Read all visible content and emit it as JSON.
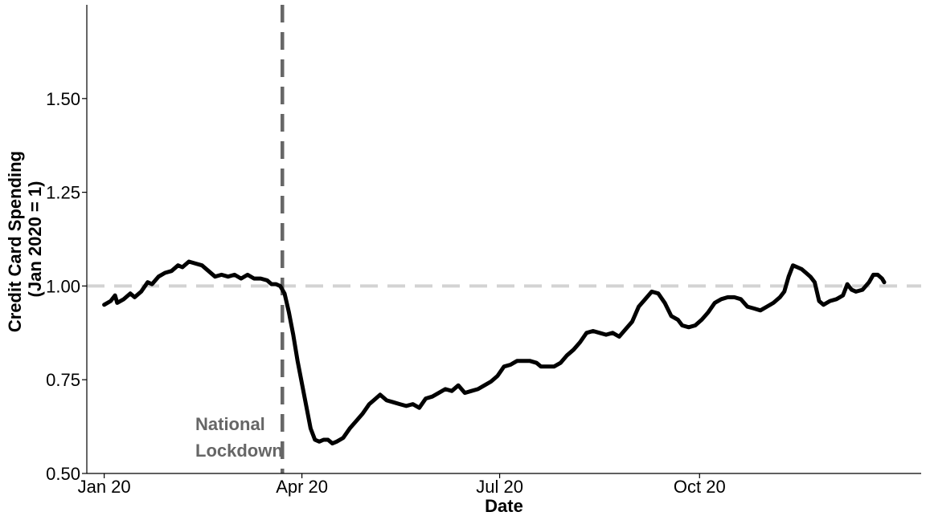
{
  "chart_data": {
    "type": "line",
    "title": "",
    "xlabel": "Date",
    "ylabel_lines": [
      "Credit Card Spending",
      "(Jan 2020 = 1)"
    ],
    "x_tick_labels": [
      {
        "date": "2020-01-01",
        "label": "Jan 20"
      },
      {
        "date": "2020-04-01",
        "label": "Apr 20"
      },
      {
        "date": "2020-07-01",
        "label": "Jul 20"
      },
      {
        "date": "2020-10-01",
        "label": "Oct 20"
      }
    ],
    "y_ticks": [
      {
        "value": 0.5,
        "label": "0.50"
      },
      {
        "value": 0.75,
        "label": "0.75"
      },
      {
        "value": 1.0,
        "label": "1.00"
      },
      {
        "value": 1.25,
        "label": "1.25"
      },
      {
        "value": 1.5,
        "label": "1.50"
      }
    ],
    "xlim": [
      "2019-12-24",
      "2021-01-11"
    ],
    "ylim": [
      0.5,
      1.75
    ],
    "grid": false,
    "reference_lines": [
      {
        "axis": "y",
        "value": 1.0,
        "style": "dashed",
        "color": "#d3d3d3"
      },
      {
        "axis": "x",
        "value": "2020-03-23",
        "style": "dashed",
        "color": "#666666"
      }
    ],
    "annotation_lines": [
      "National",
      "Lockdown"
    ],
    "series": [
      {
        "color": "#000000",
        "points": [
          [
            "2020-01-01",
            0.95
          ],
          [
            "2020-01-04",
            0.96
          ],
          [
            "2020-01-06",
            0.975
          ],
          [
            "2020-01-07",
            0.955
          ],
          [
            "2020-01-10",
            0.965
          ],
          [
            "2020-01-13",
            0.98
          ],
          [
            "2020-01-15",
            0.97
          ],
          [
            "2020-01-18",
            0.985
          ],
          [
            "2020-01-21",
            1.01
          ],
          [
            "2020-01-23",
            1.005
          ],
          [
            "2020-01-26",
            1.025
          ],
          [
            "2020-01-29",
            1.035
          ],
          [
            "2020-02-01",
            1.04
          ],
          [
            "2020-02-04",
            1.055
          ],
          [
            "2020-02-06",
            1.05
          ],
          [
            "2020-02-09",
            1.065
          ],
          [
            "2020-02-12",
            1.06
          ],
          [
            "2020-02-15",
            1.055
          ],
          [
            "2020-02-18",
            1.04
          ],
          [
            "2020-02-21",
            1.025
          ],
          [
            "2020-02-24",
            1.03
          ],
          [
            "2020-02-27",
            1.025
          ],
          [
            "2020-03-01",
            1.03
          ],
          [
            "2020-03-04",
            1.02
          ],
          [
            "2020-03-07",
            1.03
          ],
          [
            "2020-03-10",
            1.02
          ],
          [
            "2020-03-13",
            1.02
          ],
          [
            "2020-03-16",
            1.015
          ],
          [
            "2020-03-18",
            1.005
          ],
          [
            "2020-03-20",
            1.005
          ],
          [
            "2020-03-22",
            1.0
          ],
          [
            "2020-03-24",
            0.98
          ],
          [
            "2020-03-26",
            0.93
          ],
          [
            "2020-03-28",
            0.87
          ],
          [
            "2020-03-30",
            0.8
          ],
          [
            "2020-04-01",
            0.74
          ],
          [
            "2020-04-03",
            0.68
          ],
          [
            "2020-04-05",
            0.62
          ],
          [
            "2020-04-07",
            0.59
          ],
          [
            "2020-04-09",
            0.585
          ],
          [
            "2020-04-11",
            0.59
          ],
          [
            "2020-04-13",
            0.59
          ],
          [
            "2020-04-15",
            0.58
          ],
          [
            "2020-04-17",
            0.585
          ],
          [
            "2020-04-20",
            0.595
          ],
          [
            "2020-04-23",
            0.62
          ],
          [
            "2020-04-26",
            0.64
          ],
          [
            "2020-04-29",
            0.66
          ],
          [
            "2020-05-02",
            0.685
          ],
          [
            "2020-05-05",
            0.7
          ],
          [
            "2020-05-07",
            0.71
          ],
          [
            "2020-05-10",
            0.695
          ],
          [
            "2020-05-13",
            0.69
          ],
          [
            "2020-05-16",
            0.685
          ],
          [
            "2020-05-19",
            0.68
          ],
          [
            "2020-05-22",
            0.685
          ],
          [
            "2020-05-25",
            0.675
          ],
          [
            "2020-05-28",
            0.7
          ],
          [
            "2020-05-31",
            0.705
          ],
          [
            "2020-06-03",
            0.715
          ],
          [
            "2020-06-06",
            0.725
          ],
          [
            "2020-06-09",
            0.72
          ],
          [
            "2020-06-12",
            0.735
          ],
          [
            "2020-06-15",
            0.715
          ],
          [
            "2020-06-18",
            0.72
          ],
          [
            "2020-06-21",
            0.725
          ],
          [
            "2020-06-24",
            0.735
          ],
          [
            "2020-06-27",
            0.745
          ],
          [
            "2020-06-30",
            0.76
          ],
          [
            "2020-07-03",
            0.785
          ],
          [
            "2020-07-06",
            0.79
          ],
          [
            "2020-07-09",
            0.8
          ],
          [
            "2020-07-12",
            0.8
          ],
          [
            "2020-07-15",
            0.8
          ],
          [
            "2020-07-18",
            0.795
          ],
          [
            "2020-07-20",
            0.785
          ],
          [
            "2020-07-23",
            0.785
          ],
          [
            "2020-07-26",
            0.785
          ],
          [
            "2020-07-29",
            0.795
          ],
          [
            "2020-08-01",
            0.815
          ],
          [
            "2020-08-04",
            0.83
          ],
          [
            "2020-08-07",
            0.85
          ],
          [
            "2020-08-10",
            0.875
          ],
          [
            "2020-08-13",
            0.88
          ],
          [
            "2020-08-16",
            0.875
          ],
          [
            "2020-08-19",
            0.87
          ],
          [
            "2020-08-22",
            0.875
          ],
          [
            "2020-08-25",
            0.865
          ],
          [
            "2020-08-28",
            0.885
          ],
          [
            "2020-08-31",
            0.905
          ],
          [
            "2020-09-03",
            0.945
          ],
          [
            "2020-09-06",
            0.965
          ],
          [
            "2020-09-09",
            0.985
          ],
          [
            "2020-09-12",
            0.98
          ],
          [
            "2020-09-15",
            0.955
          ],
          [
            "2020-09-18",
            0.92
          ],
          [
            "2020-09-21",
            0.91
          ],
          [
            "2020-09-23",
            0.895
          ],
          [
            "2020-09-26",
            0.89
          ],
          [
            "2020-09-29",
            0.895
          ],
          [
            "2020-10-02",
            0.91
          ],
          [
            "2020-10-05",
            0.93
          ],
          [
            "2020-10-08",
            0.955
          ],
          [
            "2020-10-11",
            0.965
          ],
          [
            "2020-10-14",
            0.97
          ],
          [
            "2020-10-17",
            0.97
          ],
          [
            "2020-10-20",
            0.965
          ],
          [
            "2020-10-23",
            0.945
          ],
          [
            "2020-10-26",
            0.94
          ],
          [
            "2020-10-29",
            0.935
          ],
          [
            "2020-11-01",
            0.945
          ],
          [
            "2020-11-04",
            0.955
          ],
          [
            "2020-11-07",
            0.97
          ],
          [
            "2020-11-09",
            0.985
          ],
          [
            "2020-11-11",
            1.025
          ],
          [
            "2020-11-13",
            1.055
          ],
          [
            "2020-11-15",
            1.05
          ],
          [
            "2020-11-17",
            1.045
          ],
          [
            "2020-11-19",
            1.035
          ],
          [
            "2020-11-21",
            1.025
          ],
          [
            "2020-11-23",
            1.01
          ],
          [
            "2020-11-25",
            0.96
          ],
          [
            "2020-11-27",
            0.95
          ],
          [
            "2020-11-30",
            0.96
          ],
          [
            "2020-12-03",
            0.965
          ],
          [
            "2020-12-06",
            0.975
          ],
          [
            "2020-12-08",
            1.005
          ],
          [
            "2020-12-10",
            0.99
          ],
          [
            "2020-12-12",
            0.985
          ],
          [
            "2020-12-15",
            0.99
          ],
          [
            "2020-12-18",
            1.01
          ],
          [
            "2020-12-20",
            1.03
          ],
          [
            "2020-12-22",
            1.03
          ],
          [
            "2020-12-24",
            1.02
          ],
          [
            "2020-12-25",
            1.01
          ]
        ]
      }
    ]
  }
}
